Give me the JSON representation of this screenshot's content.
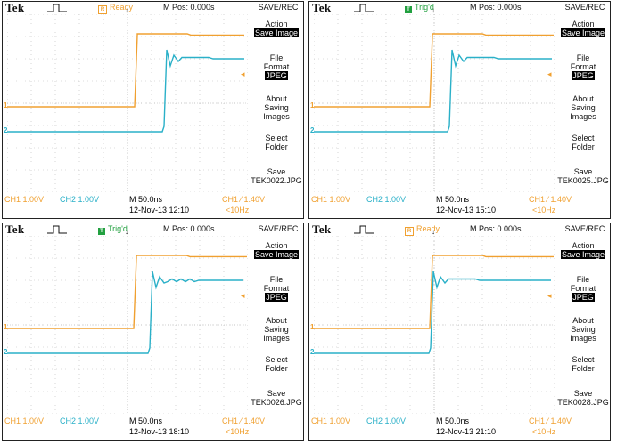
{
  "common": {
    "brand": "Tek",
    "mpos": "M Pos: 0.000s",
    "menu_title": "SAVE/REC",
    "action_label": "Action",
    "action_value": "Save Image",
    "file_format_label_1": "File",
    "file_format_label_2": "Format",
    "file_format_value": "JPEG",
    "about_1": "About",
    "about_2": "Saving",
    "about_3": "Images",
    "select_1": "Select",
    "select_2": "Folder",
    "save_label": "Save",
    "ch1_readout": "CH1 1.00V",
    "ch2_readout": "CH2 1.00V",
    "timebase": "M 50.0ns",
    "trigger_level": "CH1 ⁄ 1.40V",
    "freq": "<10Hz",
    "ch1_marker": "1",
    "ch2_marker": "2"
  },
  "colors": {
    "ch1": "#f0a030",
    "ch2": "#2ab0c8",
    "ready": "#f0a030",
    "trigd": "#22a040"
  },
  "panels": [
    {
      "status": "Ready",
      "status_icon": "R",
      "status_kind": "ready",
      "filename": "TEK0022.JPG",
      "datetime": "12-Nov-13 12:10"
    },
    {
      "status": "Trig'd",
      "status_icon": "T",
      "status_kind": "trigd",
      "filename": "TEK0025.JPG",
      "datetime": "12-Nov-13 15:10"
    },
    {
      "status": "Trig'd",
      "status_icon": "T",
      "status_kind": "trigd",
      "filename": "TEK0026.JPG",
      "datetime": "12-Nov-13 18:10"
    },
    {
      "status": "Ready",
      "status_icon": "R",
      "status_kind": "ready",
      "filename": "TEK0028.JPG",
      "datetime": "12-Nov-13 21:10"
    }
  ]
}
